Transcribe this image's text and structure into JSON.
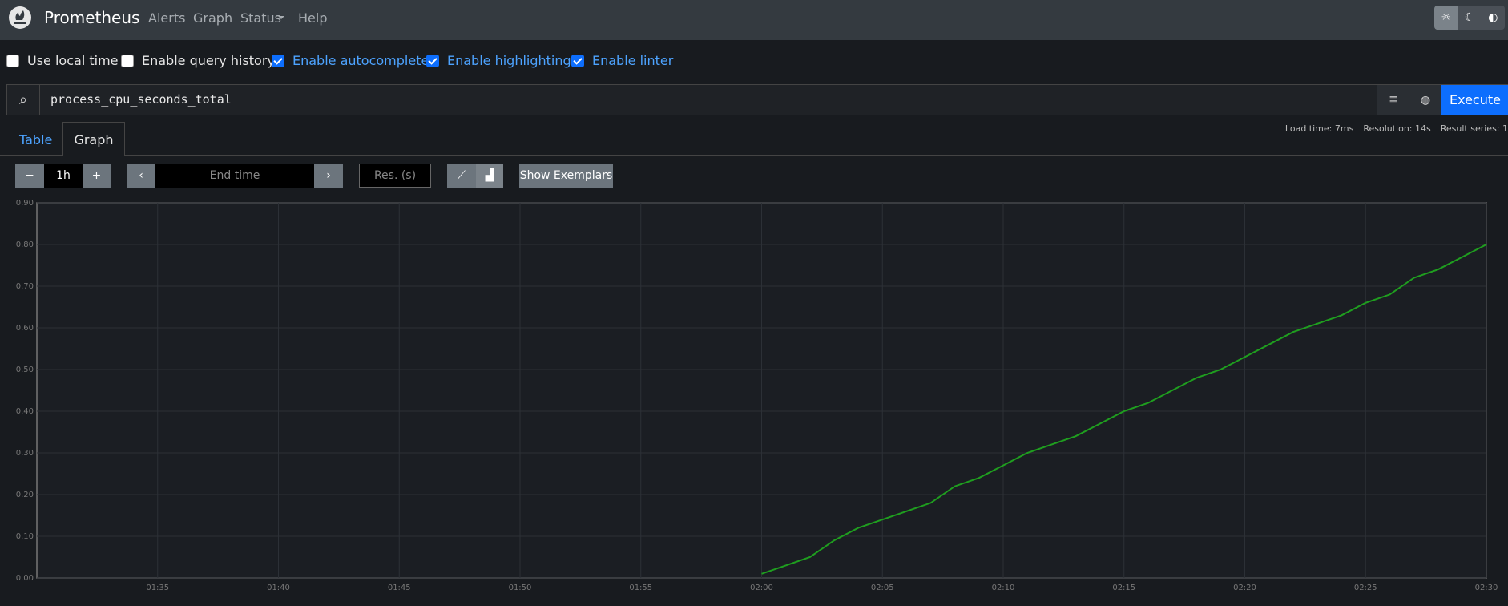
{
  "navbar": {
    "brand": "Prometheus",
    "links": [
      "Alerts",
      "Graph",
      "Status",
      "Help"
    ]
  },
  "settings": [
    {
      "label": "Use local time",
      "checked": false
    },
    {
      "label": "Enable query history",
      "checked": false
    },
    {
      "label": "Enable autocomplete",
      "checked": true
    },
    {
      "label": "Enable highlighting",
      "checked": true
    },
    {
      "label": "Enable linter",
      "checked": true
    }
  ],
  "query": {
    "expression": "process_cpu_seconds_total",
    "button": "Execute"
  },
  "tabs": [
    "Table",
    "Graph"
  ],
  "stats": [
    "Load time: 7ms",
    "Resolution: 14s",
    "Result series: 1"
  ],
  "controls": {
    "range": "1h",
    "end_time": "End time",
    "resolution": "Res. (s)",
    "exemplars": "Show Exemplars"
  },
  "chart_data": {
    "type": "line",
    "x": [
      "02:00",
      "02:01",
      "02:02",
      "02:03",
      "02:04",
      "02:05",
      "02:06",
      "02:07",
      "02:08",
      "02:09",
      "02:10",
      "02:11",
      "02:12",
      "02:13",
      "02:14",
      "02:15",
      "02:16",
      "02:17",
      "02:18",
      "02:19",
      "02:20",
      "02:21",
      "02:22",
      "02:23",
      "02:24",
      "02:25",
      "02:26",
      "02:27",
      "02:28",
      "02:29",
      "02:30"
    ],
    "values": [
      0.01,
      0.03,
      0.05,
      0.09,
      0.12,
      0.14,
      0.16,
      0.18,
      0.22,
      0.24,
      0.27,
      0.3,
      0.32,
      0.34,
      0.37,
      0.4,
      0.42,
      0.45,
      0.48,
      0.5,
      0.53,
      0.56,
      0.59,
      0.61,
      0.63,
      0.66,
      0.68,
      0.72,
      0.74,
      0.77,
      0.8
    ],
    "color": "#1f9e1f",
    "xlim": [
      "01:30",
      "02:30"
    ],
    "xticks": [
      "01:35",
      "01:40",
      "01:45",
      "01:50",
      "01:55",
      "02:00",
      "02:05",
      "02:10",
      "02:15",
      "02:20",
      "02:25",
      "02:30"
    ],
    "ylim": [
      0,
      0.9
    ],
    "yticks": [
      {
        "value": 0,
        "label": "0.00"
      },
      {
        "value": 0.1,
        "label": "0.10"
      },
      {
        "value": 0.2,
        "label": "0.20"
      },
      {
        "value": 0.3,
        "label": "0.30"
      },
      {
        "value": 0.4,
        "label": "0.40"
      },
      {
        "value": 0.5,
        "label": "0.50"
      },
      {
        "value": 0.6,
        "label": "0.60"
      },
      {
        "value": 0.7,
        "label": "0.70"
      },
      {
        "value": 0.8,
        "label": "0.80"
      },
      {
        "value": 0.9,
        "label": "0.90"
      }
    ],
    "grid": true
  }
}
